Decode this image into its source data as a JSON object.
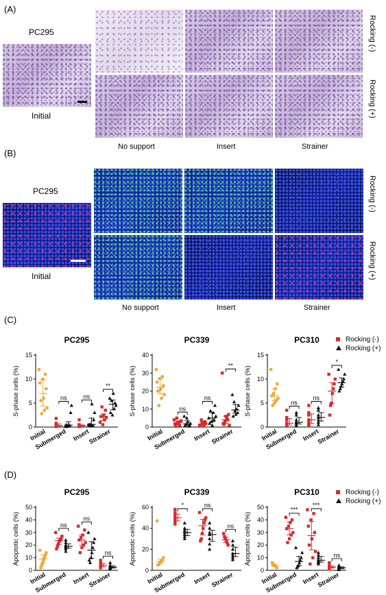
{
  "panel_labels": {
    "a": "(A)",
    "b": "(B)",
    "c": "(C)",
    "d": "(D)"
  },
  "section_a": {
    "sample": "PC295",
    "initial_label": "Initial",
    "col_labels": [
      "No support",
      "Insert",
      "Strainer"
    ],
    "row_labels": [
      "Rocking (-)",
      "Rocking (+)"
    ]
  },
  "section_b": {
    "sample": "PC295",
    "initial_label": "Initial",
    "col_labels": [
      "No support",
      "Insert",
      "Strainer"
    ],
    "row_labels": [
      "Rocking (-)",
      "Rocking (+)"
    ]
  },
  "legend": {
    "minus": "Rocking (-)",
    "plus": "Rocking (+)",
    "minus_color": "#d62b2b",
    "plus_color": "#111111",
    "initial_color": "#f0a830"
  },
  "chart_data": [
    {
      "type": "scatter",
      "title": "PC295",
      "ylabel": "S-phase cells (%)",
      "ylim": [
        0,
        15
      ],
      "yticks": [
        0,
        5,
        10,
        15
      ],
      "categories": [
        "Initial",
        "Submerged",
        "Insert",
        "Strainer"
      ],
      "initial": [
        12,
        11,
        10,
        9.2,
        8,
        6,
        5.5,
        4,
        3.5,
        2.8
      ],
      "series": [
        {
          "name": "Rocking (-)",
          "values": [
            [
              0.2,
              0.5,
              1.8,
              0.1,
              0.3,
              0.8,
              0.2
            ],
            [
              0.2,
              1.5,
              0.5,
              0.3,
              0.4,
              0.1,
              0.2
            ],
            [
              1,
              2,
              3.5,
              1.5,
              2.5,
              0.5,
              4.2,
              2.2
            ]
          ]
        },
        {
          "name": "Rocking (+)",
          "values": [
            [
              0.1,
              4.5,
              3,
              0.2,
              0.5,
              0.3,
              0.1,
              0.5
            ],
            [
              0.5,
              3,
              1.5,
              0.3,
              4.8,
              0.2,
              0.6,
              0.4
            ],
            [
              6,
              4.5,
              5,
              3.8,
              7,
              2.5,
              5.5,
              3
            ]
          ]
        }
      ],
      "annotations": [
        {
          "group": "Submerged",
          "text": "ns"
        },
        {
          "group": "Insert",
          "text": "ns"
        },
        {
          "group": "Strainer",
          "text": "**"
        }
      ]
    },
    {
      "type": "scatter",
      "title": "PC339",
      "ylabel": "S-phase cells (%)",
      "ylim": [
        0,
        40
      ],
      "yticks": [
        0,
        10,
        20,
        30,
        40
      ],
      "categories": [
        "Initial",
        "Submerged",
        "Insert",
        "Strainer"
      ],
      "initial": [
        32,
        28,
        27,
        25,
        23,
        21,
        20,
        18,
        16,
        12
      ],
      "series": [
        {
          "name": "Rocking (-)",
          "values": [
            [
              4,
              3,
              2,
              5,
              1.5,
              3.5,
              1,
              2.5,
              0.5
            ],
            [
              1,
              2,
              3,
              0.5,
              1.5,
              2.5,
              4,
              0.8
            ],
            [
              30,
              7,
              5,
              3,
              2,
              1,
              4,
              6,
              1.5
            ]
          ]
        },
        {
          "name": "Rocking (+)",
          "values": [
            [
              6,
              2,
              1,
              0.5,
              3,
              5,
              1.5,
              0.8
            ],
            [
              5,
              12,
              8,
              3,
              2,
              6,
              4,
              1,
              9
            ],
            [
              18,
              12,
              8,
              10,
              7,
              9,
              14,
              6
            ]
          ]
        }
      ],
      "annotations": [
        {
          "group": "Submerged",
          "text": "ns"
        },
        {
          "group": "Insert",
          "text": "ns"
        },
        {
          "group": "Strainer",
          "text": "**"
        }
      ]
    },
    {
      "type": "scatter",
      "title": "PC310",
      "ylabel": "S-phase cells (%)",
      "ylim": [
        0,
        15
      ],
      "yticks": [
        0,
        5,
        10,
        15
      ],
      "categories": [
        "Initial",
        "Submerged",
        "Insert",
        "Strainer"
      ],
      "initial": [
        12,
        9,
        8,
        7,
        6.5,
        6,
        5.5,
        5,
        4.5
      ],
      "series": [
        {
          "name": "Rocking (-)",
          "values": [
            [
              0.3,
              3.5,
              1.5,
              0.2,
              0.8,
              2,
              0.5
            ],
            [
              4.5,
              2.5,
              1,
              0.3,
              1.5,
              0.5,
              3
            ],
            [
              11,
              10,
              9,
              8,
              7,
              5,
              4.5,
              2.5
            ]
          ]
        },
        {
          "name": "Rocking (+)",
          "values": [
            [
              0.5,
              1.5,
              3,
              2.5,
              1,
              0.2,
              0.8
            ],
            [
              4,
              3.5,
              2.5,
              1.5,
              0.5,
              2,
              1
            ],
            [
              12,
              11,
              10,
              9.5,
              9,
              8.5,
              8,
              7.5
            ]
          ]
        }
      ],
      "annotations": [
        {
          "group": "Submerged",
          "text": "ns"
        },
        {
          "group": "Insert",
          "text": "ns"
        },
        {
          "group": "Strainer",
          "text": "*"
        }
      ]
    },
    {
      "type": "scatter",
      "title": "PC295",
      "ylabel": "Apoptotic cells (%)",
      "ylim": [
        0,
        50
      ],
      "yticks": [
        0,
        10,
        20,
        30,
        40,
        50
      ],
      "categories": [
        "Initial",
        "Submerged",
        "Insert",
        "Strainer"
      ],
      "initial": [
        16,
        14,
        12,
        10,
        8,
        6,
        4,
        2
      ],
      "series": [
        {
          "name": "Rocking (-)",
          "values": [
            [
              30,
              27,
              25,
              24,
              23,
              21,
              19,
              17
            ],
            [
              35,
              32,
              28,
              26,
              24,
              22,
              20,
              18,
              14
            ],
            [
              8,
              6,
              5,
              4,
              3,
              2.5,
              2
            ]
          ]
        },
        {
          "name": "Rocking (+)",
          "values": [
            [
              24,
              22,
              20,
              19,
              18,
              17,
              15
            ],
            [
              30,
              25,
              22,
              18,
              14,
              10,
              6,
              8
            ],
            [
              6,
              4,
              3,
              2.5,
              2,
              1.5,
              1
            ]
          ]
        }
      ],
      "annotations": [
        {
          "group": "Submerged",
          "text": "ns"
        },
        {
          "group": "Insert",
          "text": "ns"
        },
        {
          "group": "Strainer",
          "text": "ns"
        }
      ]
    },
    {
      "type": "scatter",
      "title": "PC339",
      "ylabel": "Apoptotic cells (%)",
      "ylim": [
        0,
        60
      ],
      "yticks": [
        0,
        20,
        40,
        60
      ],
      "categories": [
        "Initial",
        "Submerged",
        "Insert",
        "Strainer"
      ],
      "initial": [
        47,
        12,
        10,
        9,
        8,
        7,
        6,
        5
      ],
      "series": [
        {
          "name": "Rocking (-)",
          "values": [
            [
              58,
              55,
              52,
              50,
              48,
              46,
              44
            ],
            [
              55,
              50,
              48,
              45,
              40,
              35,
              30,
              28
            ],
            [
              35,
              32,
              30,
              28,
              26,
              24
            ]
          ]
        },
        {
          "name": "Rocking (+)",
          "values": [
            [
              45,
              40,
              38,
              36,
              34,
              32,
              30
            ],
            [
              45,
              40,
              36,
              34,
              30,
              25,
              20
            ],
            [
              28,
              24,
              20,
              16,
              14,
              12,
              10
            ]
          ]
        }
      ],
      "annotations": [
        {
          "group": "Submerged",
          "text": "*"
        },
        {
          "group": "Insert",
          "text": "ns"
        },
        {
          "group": "Strainer",
          "text": "ns"
        }
      ]
    },
    {
      "type": "scatter",
      "title": "PC310",
      "ylabel": "Apoptotic cells (%)",
      "ylim": [
        0,
        50
      ],
      "yticks": [
        0,
        10,
        20,
        30,
        40,
        50
      ],
      "categories": [
        "Initial",
        "Submerged",
        "Insert",
        "Strainer"
      ],
      "initial": [
        6,
        5,
        4,
        3.5,
        3,
        2
      ],
      "series": [
        {
          "name": "Rocking (-)",
          "values": [
            [
              42,
              40,
              38,
              35,
              33,
              30,
              28,
              25,
              22
            ],
            [
              48,
              45,
              40,
              35,
              30,
              25,
              20,
              15,
              10,
              5
            ],
            [
              6,
              4,
              3,
              2.5,
              2,
              1.5,
              1
            ]
          ]
        },
        {
          "name": "Rocking (+)",
          "values": [
            [
              18,
              14,
              10,
              8,
              6,
              4,
              3,
              2
            ],
            [
              14,
              12,
              10,
              8,
              7,
              6,
              5
            ],
            [
              4,
              3,
              2.5,
              2,
              1.5,
              1,
              0.5
            ]
          ]
        }
      ],
      "annotations": [
        {
          "group": "Submerged",
          "text": "***"
        },
        {
          "group": "Insert",
          "text": "***"
        },
        {
          "group": "Strainer",
          "text": "ns"
        }
      ]
    }
  ]
}
